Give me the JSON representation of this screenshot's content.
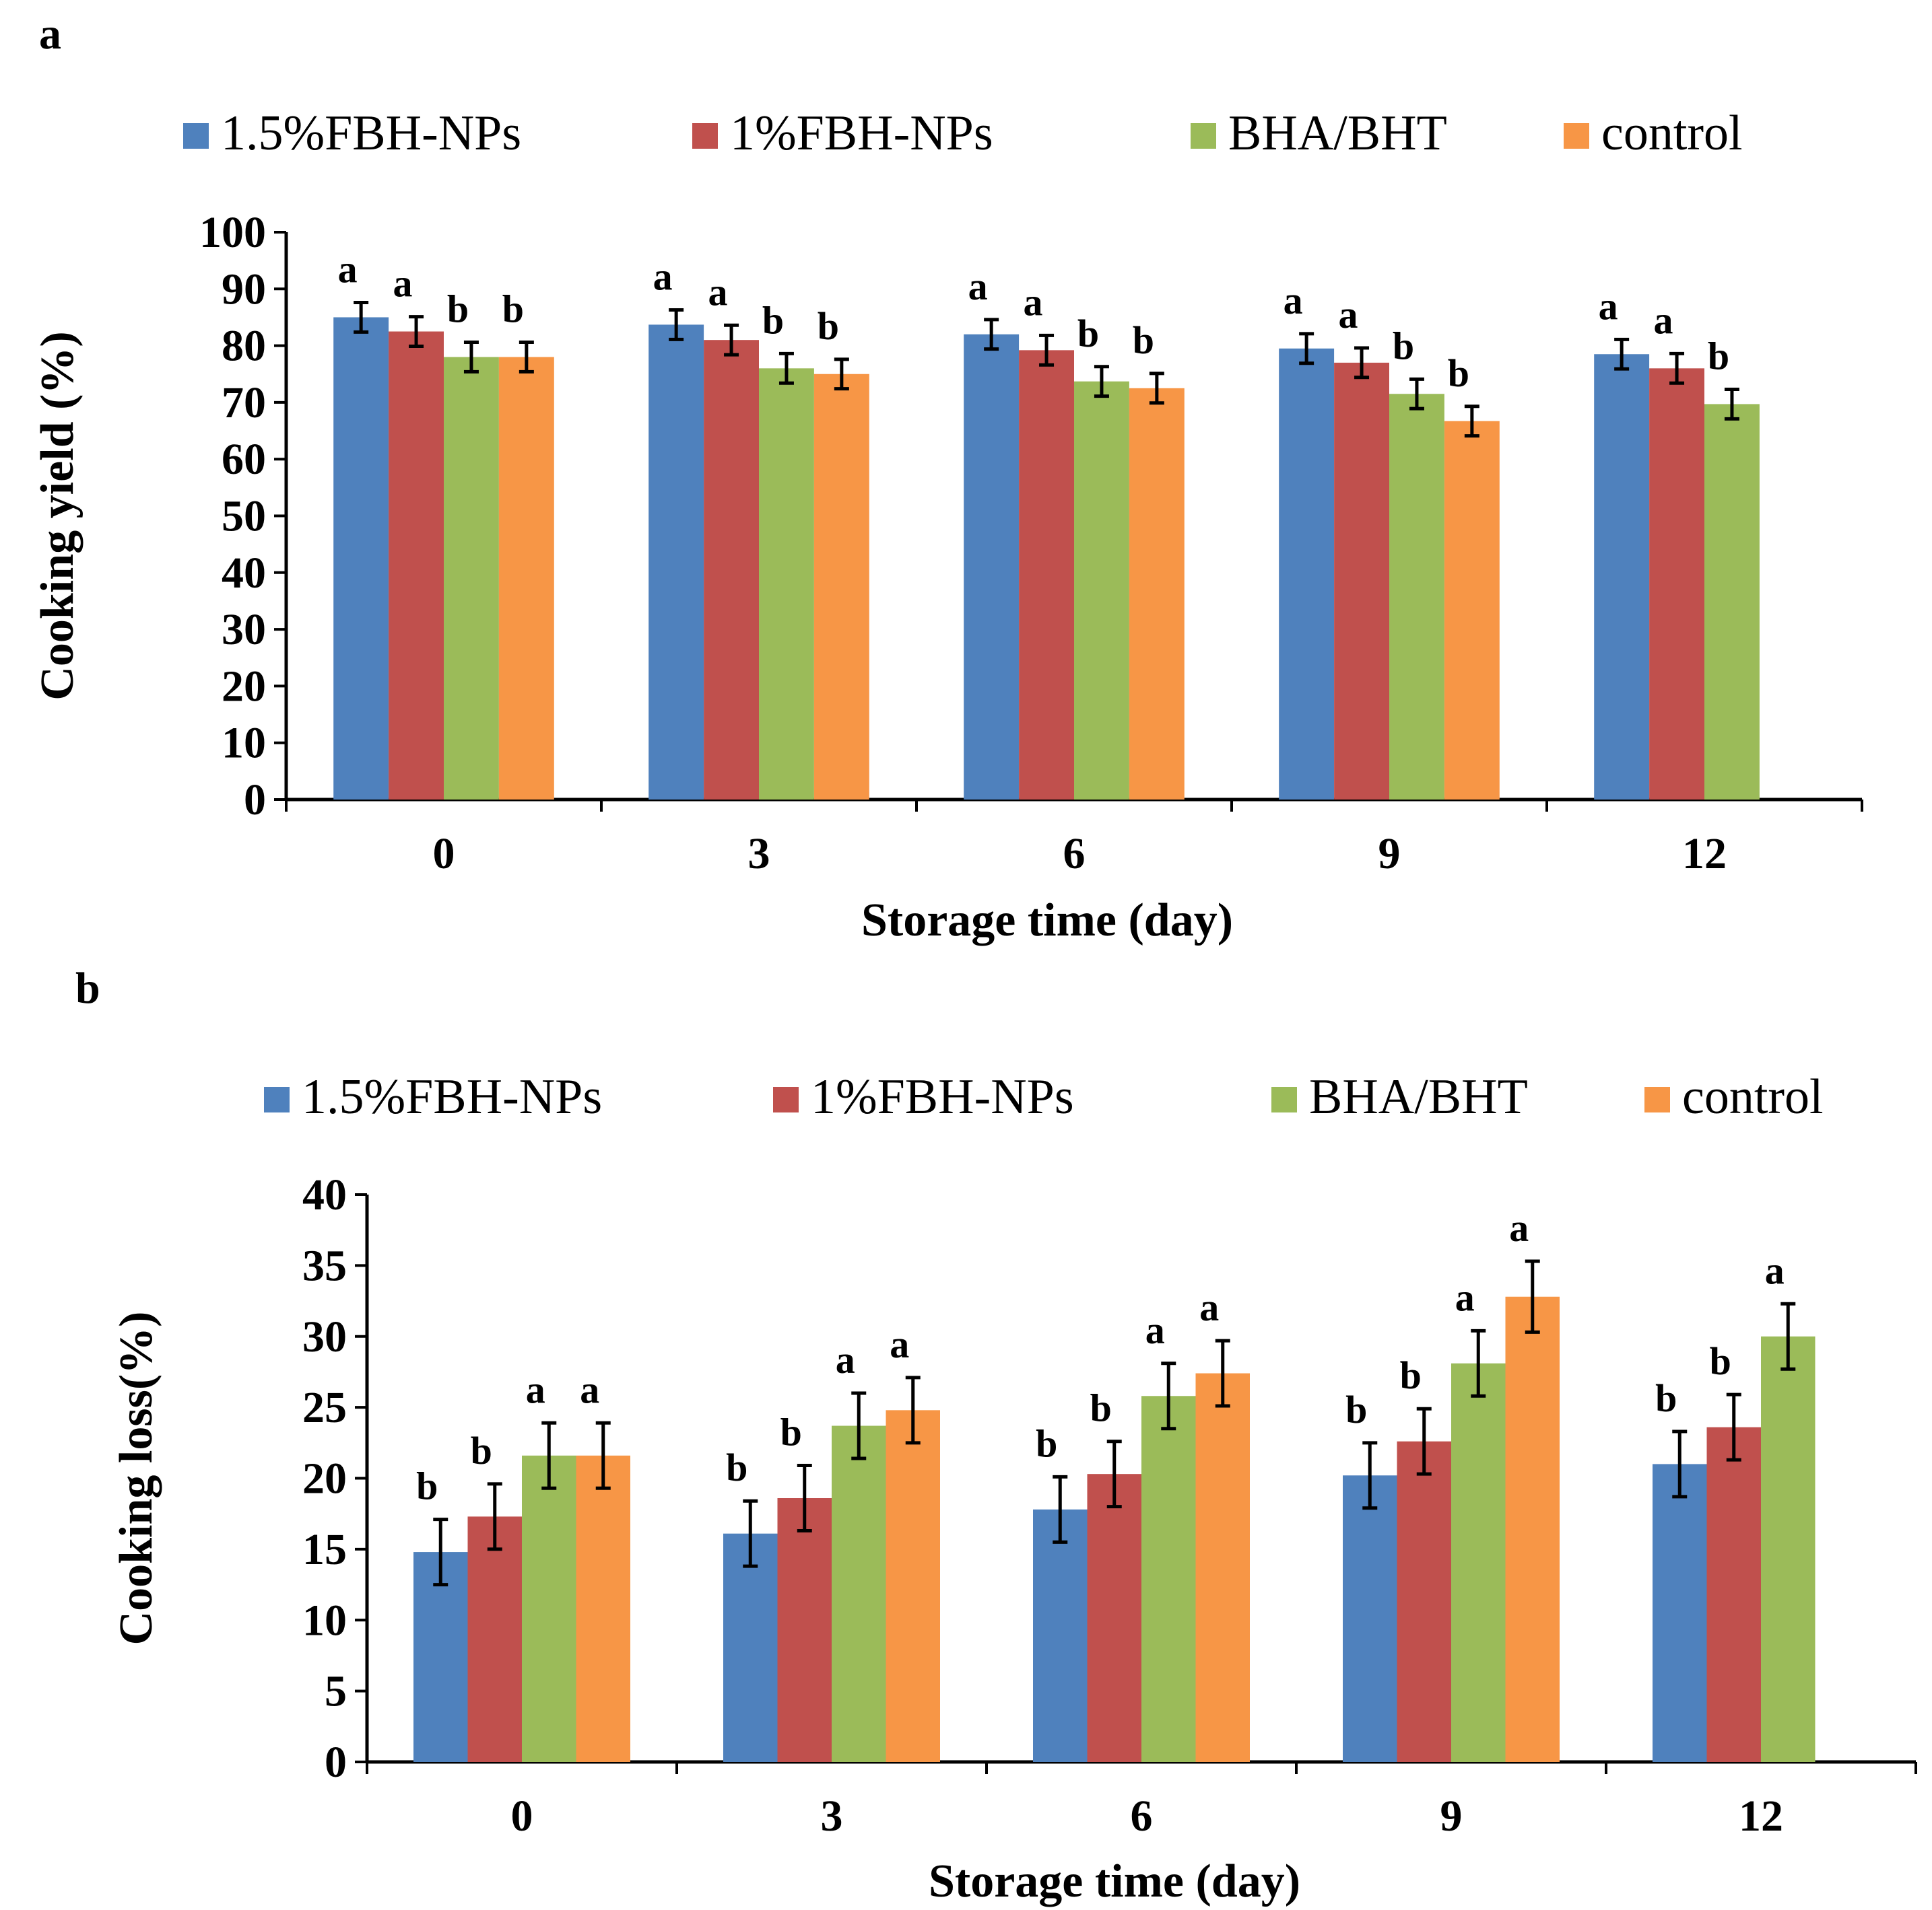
{
  "chart_data": [
    {
      "panel": "a",
      "type": "bar",
      "title": "",
      "xlabel": "Storage time  (day)",
      "ylabel": "Cooking yield (%)",
      "ylim": [
        0,
        100
      ],
      "yticks": [
        "0",
        "10",
        "20",
        "30",
        "40",
        "50",
        "60",
        "70",
        "80",
        "90",
        "100"
      ],
      "categories": [
        "0",
        "3",
        "6",
        "9",
        "12"
      ],
      "legend_position": "top",
      "series": [
        {
          "name": "1.5%FBH-NPs",
          "color": "#4F81BD",
          "values": [
            85,
            83.7,
            82,
            79.5,
            78.5
          ],
          "errors": [
            2.6,
            2.6,
            2.6,
            2.6,
            2.6
          ],
          "letters": [
            "a",
            "a",
            "a",
            "a",
            "a"
          ]
        },
        {
          "name": "1%FBH-NPs",
          "color": "#C0504D",
          "values": [
            82.5,
            81,
            79.2,
            77,
            76
          ],
          "errors": [
            2.6,
            2.6,
            2.6,
            2.6,
            2.6
          ],
          "letters": [
            "a",
            "a",
            "a",
            "a",
            "a"
          ]
        },
        {
          "name": "BHA/BHT",
          "color": "#9BBB59",
          "values": [
            78,
            76,
            73.7,
            71.5,
            69.7
          ],
          "errors": [
            2.6,
            2.6,
            2.6,
            2.6,
            2.6
          ],
          "letters": [
            "b",
            "b",
            "b",
            "b",
            "b"
          ]
        },
        {
          "name": "control",
          "color": "#F79646",
          "values": [
            78,
            75,
            72.5,
            66.7,
            null
          ],
          "errors": [
            2.6,
            2.6,
            2.6,
            2.6,
            null
          ],
          "letters": [
            "b",
            "b",
            "b",
            "b",
            ""
          ]
        }
      ]
    },
    {
      "panel": "b",
      "type": "bar",
      "title": "",
      "xlabel": "Storage time  (day)",
      "ylabel": "Cooking loss(%)",
      "ylim": [
        0,
        40
      ],
      "yticks": [
        "0",
        "5",
        "10",
        "15",
        "20",
        "25",
        "30",
        "35",
        "40"
      ],
      "categories": [
        "0",
        "3",
        "6",
        "9",
        "12"
      ],
      "legend_position": "top",
      "series": [
        {
          "name": "1.5%FBH-NPs",
          "color": "#4F81BD",
          "values": [
            14.8,
            16.1,
            17.8,
            20.2,
            21
          ],
          "errors": [
            2.3,
            2.3,
            2.3,
            2.3,
            2.3
          ],
          "letters": [
            "b",
            "b",
            "b",
            "b",
            "b"
          ]
        },
        {
          "name": "1%FBH-NPs",
          "color": "#C0504D",
          "values": [
            17.3,
            18.6,
            20.3,
            22.6,
            23.6
          ],
          "errors": [
            2.3,
            2.3,
            2.3,
            2.3,
            2.3
          ],
          "letters": [
            "b",
            "b",
            "b",
            "b",
            "b"
          ]
        },
        {
          "name": "BHA/BHT",
          "color": "#9BBB59",
          "values": [
            21.6,
            23.7,
            25.8,
            28.1,
            30
          ],
          "errors": [
            2.3,
            2.3,
            2.3,
            2.3,
            2.3
          ],
          "letters": [
            "a",
            "a",
            "a",
            "a",
            "a"
          ]
        },
        {
          "name": "control",
          "color": "#F79646",
          "values": [
            21.6,
            24.8,
            27.4,
            32.8,
            null
          ],
          "errors": [
            2.3,
            2.3,
            2.3,
            2.5,
            null
          ],
          "letters": [
            "a",
            "a",
            "a",
            "a",
            ""
          ]
        }
      ]
    }
  ]
}
